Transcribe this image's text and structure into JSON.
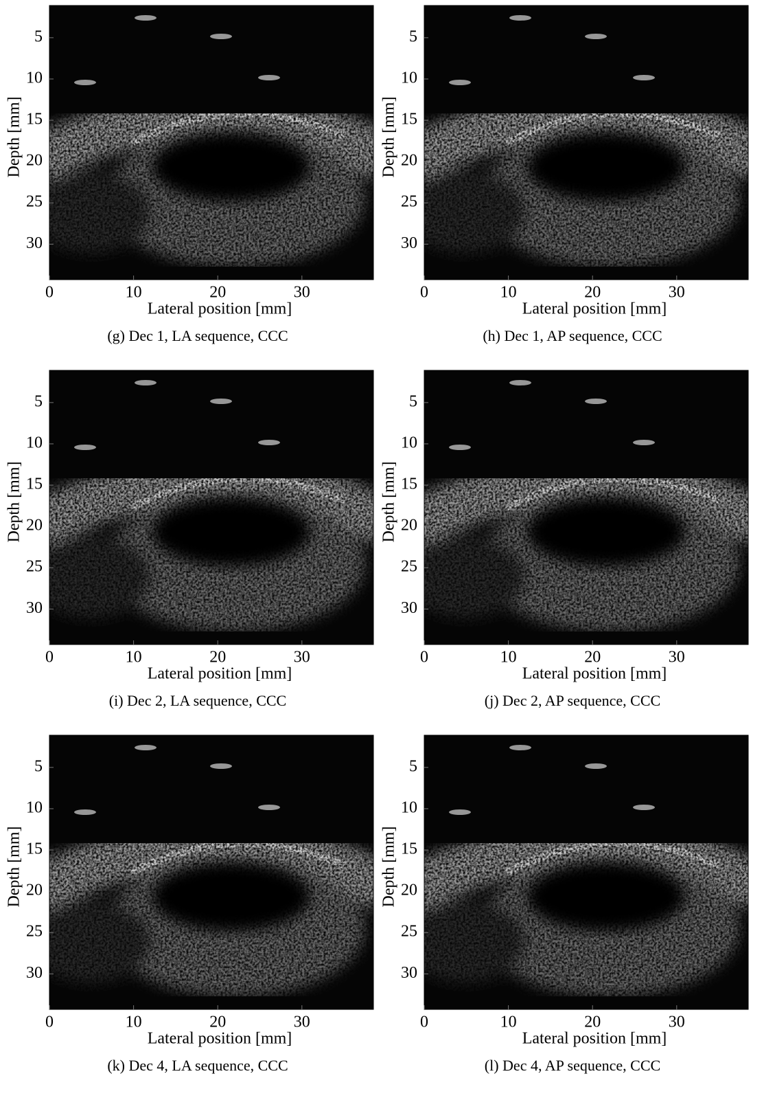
{
  "panels": [
    {
      "caption": "(g) Dec 1, LA sequence, CCC",
      "x_label": "Lateral position [mm]",
      "y_label": "Depth [mm]",
      "xticks": [
        0,
        10,
        20,
        30
      ],
      "yticks": [
        5,
        10,
        15,
        20,
        25,
        30
      ],
      "xlim": [
        0,
        38.5
      ],
      "ylim": [
        1.1,
        34.3
      ]
    },
    {
      "caption": "(h) Dec 1, AP sequence, CCC",
      "x_label": "Lateral position [mm]",
      "y_label": "Depth [mm]",
      "xticks": [
        0,
        10,
        20,
        30
      ],
      "yticks": [
        5,
        10,
        15,
        20,
        25,
        30
      ],
      "xlim": [
        0,
        38.5
      ],
      "ylim": [
        1.1,
        34.3
      ]
    },
    {
      "caption": "(i) Dec 2, LA sequence, CCC",
      "x_label": "Lateral position [mm]",
      "y_label": "Depth [mm]",
      "xticks": [
        0,
        10,
        20,
        30
      ],
      "yticks": [
        5,
        10,
        15,
        20,
        25,
        30
      ],
      "xlim": [
        0,
        38.5
      ],
      "ylim": [
        1.1,
        34.3
      ]
    },
    {
      "caption": "(j) Dec 2, AP sequence, CCC",
      "x_label": "Lateral position [mm]",
      "y_label": "Depth [mm]",
      "xticks": [
        0,
        10,
        20,
        30
      ],
      "yticks": [
        5,
        10,
        15,
        20,
        25,
        30
      ],
      "xlim": [
        0,
        38.5
      ],
      "ylim": [
        1.1,
        34.3
      ]
    },
    {
      "caption": "(k) Dec 4, LA sequence, CCC",
      "x_label": "Lateral position [mm]",
      "y_label": "Depth [mm]",
      "xticks": [
        0,
        10,
        20,
        30
      ],
      "yticks": [
        5,
        10,
        15,
        20,
        25,
        30
      ],
      "xlim": [
        0,
        38.5
      ],
      "ylim": [
        1.1,
        34.3
      ]
    },
    {
      "caption": "(l) Dec 4, AP sequence, CCC",
      "x_label": "Lateral position [mm]",
      "y_label": "Depth [mm]",
      "xticks": [
        0,
        10,
        20,
        30
      ],
      "yticks": [
        5,
        10,
        15,
        20,
        25,
        30
      ],
      "xlim": [
        0,
        38.5
      ],
      "ylim": [
        1.1,
        34.3
      ]
    }
  ]
}
